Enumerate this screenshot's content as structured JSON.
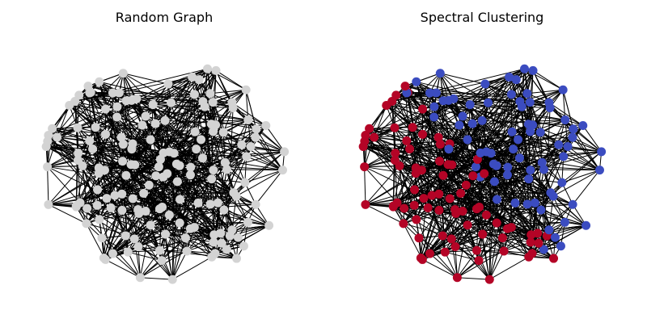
{
  "panels": [
    {
      "title": "Random Graph"
    },
    {
      "title": "Spectral Clustering"
    }
  ],
  "graph": {
    "node_colors": {
      "default": "#d3d3d3",
      "cluster_a": "#3b4cc0",
      "cluster_b": "#b40426"
    },
    "edge_color": "#000000"
  }
}
